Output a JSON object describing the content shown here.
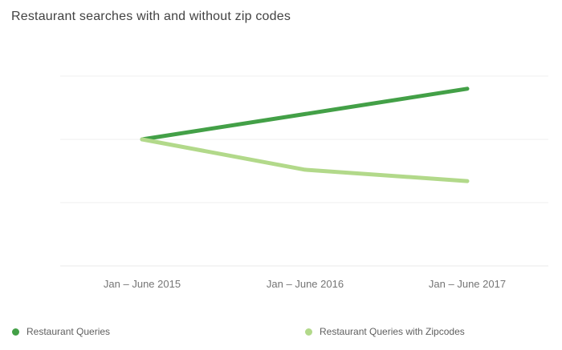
{
  "title": "Restaurant searches with and without zip codes",
  "colors": {
    "series1": "#43a047",
    "series2": "#b2d98a",
    "gridline": "#efefef",
    "baseline": "#e9e9e9",
    "title_text": "#424242",
    "axis_text": "#757575",
    "legend_text": "#5f5f5f",
    "background": "#ffffff"
  },
  "chart_data": {
    "type": "line",
    "title": "Restaurant searches with and without zip codes",
    "categories": [
      "Jan – June 2015",
      "Jan – June 2016",
      "Jan – June 2017"
    ],
    "series": [
      {
        "name": "Restaurant Queries",
        "values": [
          100,
          120,
          140
        ],
        "color": "#43a047"
      },
      {
        "name": "Restaurant Queries with Zipcodes",
        "values": [
          100,
          76,
          67
        ],
        "color": "#b2d98a"
      }
    ],
    "xlabel": "",
    "ylabel": "",
    "ylim": [
      0,
      150
    ],
    "gridline_values": [
      0,
      50,
      100,
      150
    ],
    "grid": "horizontal-only",
    "y_axis_labels_visible": false,
    "legend_position": "bottom"
  },
  "legend": {
    "items": [
      {
        "label": "Restaurant Queries",
        "color": "#43a047"
      },
      {
        "label": "Restaurant Queries with Zipcodes",
        "color": "#b2d98a"
      }
    ]
  }
}
